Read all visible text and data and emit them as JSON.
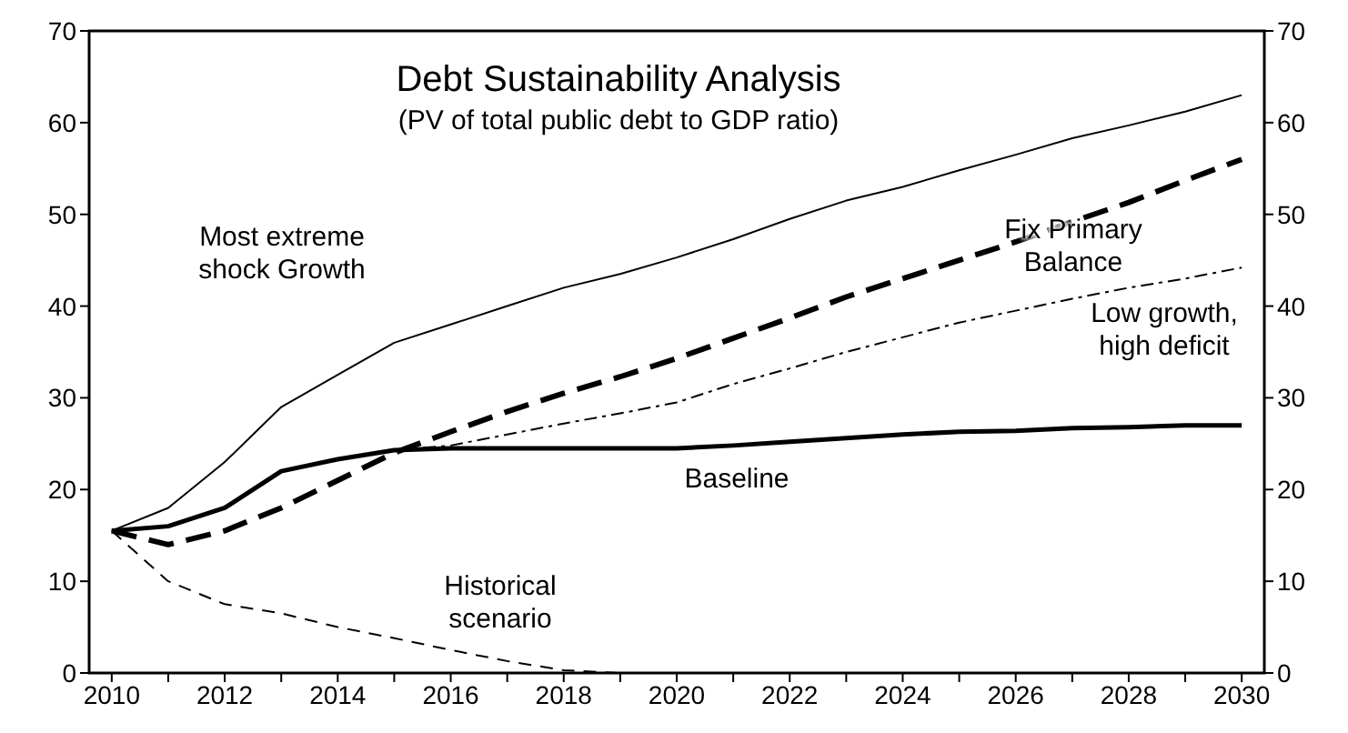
{
  "chart_data": {
    "type": "line",
    "title": "Debt Sustainability Analysis",
    "subtitle": "(PV of total public debt to GDP ratio)",
    "x": [
      2010,
      2011,
      2012,
      2013,
      2014,
      2015,
      2016,
      2017,
      2018,
      2019,
      2020,
      2021,
      2022,
      2023,
      2024,
      2025,
      2026,
      2027,
      2028,
      2029,
      2030
    ],
    "series": [
      {
        "name": "Most extreme shock Growth",
        "color": "#000000",
        "line_style": "solid",
        "values": [
          15.5,
          18,
          23,
          29,
          32.5,
          36,
          38,
          40,
          42,
          43.5,
          45.3,
          47.3,
          49.5,
          51.5,
          53,
          54.8,
          56.5,
          58.3,
          59.7,
          61.2,
          63
        ]
      },
      {
        "name": "Fix Primary Balance",
        "color": "#000000",
        "line_style": "dashed",
        "values": [
          15.5,
          14,
          15.5,
          18,
          21,
          24,
          26.3,
          28.5,
          30.5,
          32.3,
          34.3,
          36.5,
          38.7,
          41,
          43,
          45,
          47,
          49.2,
          51.3,
          53.7,
          56
        ]
      },
      {
        "name": "Low growth, high deficit",
        "color": "#000000",
        "line_style": "dotted",
        "values": [
          15.5,
          16,
          18,
          22,
          23.3,
          24.3,
          24.8,
          26,
          27.2,
          28.3,
          29.5,
          31.5,
          33.2,
          35,
          36.6,
          38.2,
          39.5,
          40.8,
          42,
          43,
          44.2
        ]
      },
      {
        "name": "Baseline",
        "color": "#000000",
        "line_style": "solid",
        "values": [
          15.5,
          16,
          18,
          22,
          23.3,
          24.3,
          24.5,
          24.5,
          24.5,
          24.5,
          24.5,
          24.8,
          25.2,
          25.6,
          26,
          26.3,
          26.4,
          26.7,
          26.8,
          27,
          27
        ]
      },
      {
        "name": "Historical scenario",
        "color": "#000000",
        "line_style": "dashed",
        "values": [
          15.5,
          10,
          7.5,
          6.5,
          5,
          3.8,
          2.5,
          1.3,
          0.3,
          0,
          0,
          0,
          0,
          0,
          0,
          0,
          0,
          0,
          0,
          0,
          0
        ]
      }
    ],
    "xlim": [
      2009.6,
      2030.4
    ],
    "xticks": [
      2010,
      {
        "value": 2011,
        "label": null
      },
      2012,
      {
        "value": 2013,
        "label": null
      },
      2014,
      {
        "value": 2015,
        "label": null
      },
      2016,
      {
        "value": 2017,
        "label": null
      },
      2018,
      {
        "value": 2019,
        "label": null
      },
      2020,
      {
        "value": 2021,
        "label": null
      },
      2022,
      {
        "value": 2023,
        "label": null
      },
      2024,
      {
        "value": 2025,
        "label": null
      },
      2026,
      {
        "value": 2027,
        "label": null
      },
      2028,
      {
        "value": 2029,
        "label": null
      },
      2030
    ],
    "ylim": [
      0,
      70
    ],
    "yticks": [
      0,
      10,
      20,
      30,
      40,
      50,
      60,
      70
    ],
    "y2lim": [
      0,
      70
    ],
    "y2ticks": [
      0,
      10,
      20,
      30,
      40,
      50,
      60,
      70
    ],
    "grid": false,
    "legend": false,
    "marker": "none"
  }
}
